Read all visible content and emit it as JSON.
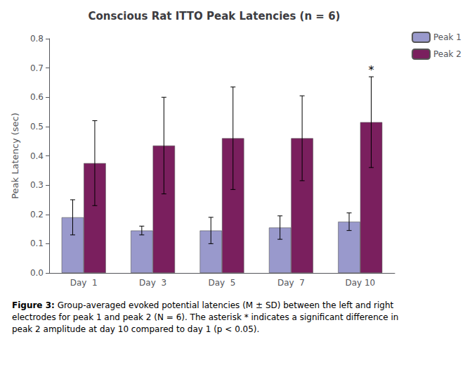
{
  "chart_data": {
    "type": "bar",
    "title": "Conscious Rat ITTO Peak Latencies (n = 6)",
    "ylabel": "Peak Latency (sec)",
    "categories": [
      "Day  1",
      "Day  3",
      "Day  5",
      "Day  7",
      "Day 10"
    ],
    "series": [
      {
        "name": "Peak 1",
        "color": "#9999cc",
        "values": [
          0.19,
          0.145,
          0.145,
          0.155,
          0.175
        ],
        "errors": [
          0.06,
          0.015,
          0.045,
          0.04,
          0.03
        ]
      },
      {
        "name": "Peak 2",
        "color": "#7a1f5e",
        "values": [
          0.375,
          0.435,
          0.46,
          0.46,
          0.515
        ],
        "errors": [
          0.145,
          0.165,
          0.175,
          0.145,
          0.155
        ]
      }
    ],
    "ylim": [
      0,
      0.8
    ],
    "yticks": [
      {
        "value": 0,
        "label": "0.0"
      },
      0.1,
      0.2,
      0.3,
      0.4,
      0.5,
      0.6,
      0.7,
      0.8
    ],
    "grid": false,
    "legend": "upper right",
    "annotations": [
      {
        "text": "*",
        "category": "Day 10",
        "series": "Peak 2"
      }
    ],
    "caption": {
      "label": "Figure 3:",
      "text": " Group-averaged evoked potential latencies (M ± SD) between the left and right\nelectrodes for peak 1 and peak 2 (N = 6). The asterisk * indicates a significant difference in\npeak 2 amplitude at day 10 compared to day 1 (p < 0.05)."
    }
  }
}
